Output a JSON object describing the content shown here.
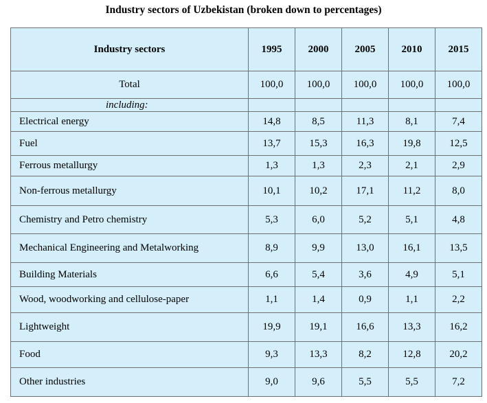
{
  "title": "Industry sectors of Uzbekistan (broken down to percentages)",
  "table": {
    "header_label": "Industry sectors",
    "years": [
      "1995",
      "2000",
      "2005",
      "2010",
      "2015"
    ],
    "total": {
      "label": "Total",
      "values": [
        "100,0",
        "100,0",
        "100,0",
        "100,0",
        "100,0"
      ]
    },
    "including_label": "including:",
    "rows": [
      {
        "label": "Electrical energy",
        "values": [
          "14,8",
          "8,5",
          "11,3",
          "8,1",
          "7,4"
        ]
      },
      {
        "label": "Fuel",
        "values": [
          "13,7",
          "15,3",
          "16,3",
          "19,8",
          "12,5"
        ]
      },
      {
        "label": "Ferrous metallurgy",
        "values": [
          "1,3",
          "1,3",
          "2,3",
          "2,1",
          "2,9"
        ]
      },
      {
        "label": "Non-ferrous metallurgy",
        "values": [
          "10,1",
          "10,2",
          "17,1",
          "11,2",
          "8,0"
        ]
      },
      {
        "label": "Chemistry and Petro chemistry",
        "values": [
          "5,3",
          "6,0",
          "5,2",
          "5,1",
          "4,8"
        ]
      },
      {
        "label": "Mechanical Engineering and Metalworking",
        "values": [
          "8,9",
          "9,9",
          "13,0",
          "16,1",
          "13,5"
        ]
      },
      {
        "label": "Building Materials",
        "values": [
          "6,6",
          "5,4",
          "3,6",
          "4,9",
          "5,1"
        ]
      },
      {
        "label": "Wood, woodworking and cellulose-paper",
        "values": [
          "1,1",
          "1,4",
          "0,9",
          "1,1",
          "2,2"
        ]
      },
      {
        "label": "Lightweight",
        "values": [
          "19,9",
          "19,1",
          "16,6",
          "13,3",
          "16,2"
        ]
      },
      {
        "label": "Food",
        "values": [
          "9,3",
          "13,3",
          "8,2",
          "12,8",
          "20,2"
        ]
      },
      {
        "label": "Other industries",
        "values": [
          "9,0",
          "9,6",
          "5,5",
          "5,5",
          "7,2"
        ]
      }
    ]
  }
}
